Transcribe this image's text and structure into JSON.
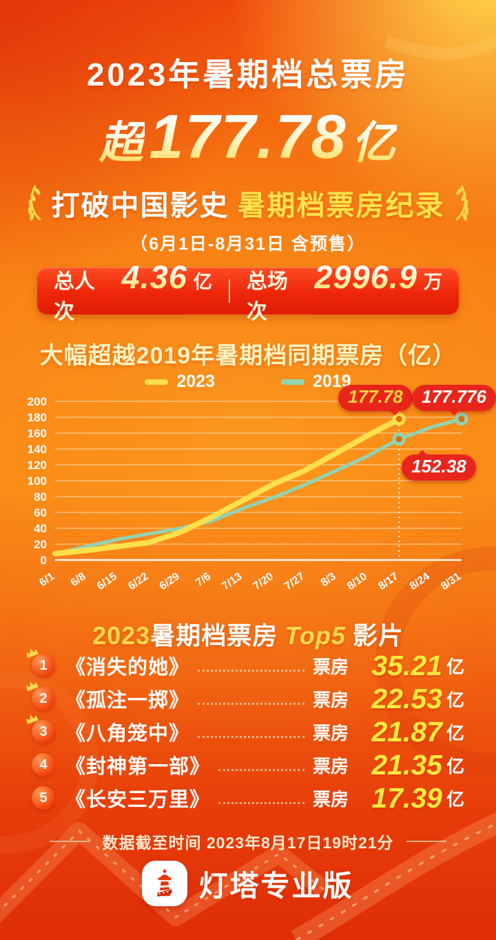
{
  "header": {
    "title": "2023年暑期档总票房",
    "headline_prefix": "超",
    "headline_value": "177.78",
    "headline_unit": "亿",
    "record_white": "打破中国影史",
    "record_yellow": "暑期档票房纪录",
    "date_range": "（6月1日-8月31日 含预售）"
  },
  "stats": {
    "attendance_label": "总人次",
    "attendance_value": "4.36",
    "attendance_unit": "亿",
    "sessions_label": "总场次",
    "sessions_value": "2996.9",
    "sessions_unit": "万"
  },
  "chart_data": {
    "type": "line",
    "title": "大幅超越2019年暑期档同期票房（亿）",
    "x": [
      "6/1",
      "6/8",
      "6/15",
      "6/22",
      "6/29",
      "7/6",
      "7/13",
      "7/20",
      "7/27",
      "8/3",
      "8/10",
      "8/17",
      "8/24",
      "8/31"
    ],
    "series": [
      {
        "name": "2023",
        "color": "#ffe04a",
        "values": [
          8,
          12,
          17,
          22,
          35,
          54,
          75,
          96,
          113,
          135,
          157,
          177.78,
          null,
          null
        ]
      },
      {
        "name": "2019",
        "color": "#8fd4b4",
        "values": [
          8,
          17,
          26,
          33,
          40,
          49,
          65,
          79,
          95,
          113,
          131,
          152.38,
          167,
          177.776
        ]
      }
    ],
    "ylim": [
      0,
      200
    ],
    "yticks": [
      0,
      20,
      40,
      60,
      80,
      100,
      120,
      140,
      160,
      180,
      200
    ],
    "grid": true,
    "legend_position": "top",
    "dotted_line_x": "8/17",
    "annotations": [
      {
        "series": "2023",
        "x": "8/17",
        "value": 177.78,
        "label": "177.78"
      },
      {
        "series": "2019",
        "x": "8/17",
        "value": 152.38,
        "label": "152.38"
      },
      {
        "series": "2019",
        "x": "8/31",
        "value": 177.776,
        "label": "177.776"
      }
    ],
    "note": "values estimated from gridlines; labeled points are exact"
  },
  "top5": {
    "title_parts": {
      "year": "2023",
      "mid": "暑期档票房",
      "top": "Top5",
      "suffix": "影片"
    },
    "box_office_label": "票房",
    "unit": "亿",
    "items": [
      {
        "rank": "1",
        "title": "《消失的她》",
        "value": "35.21"
      },
      {
        "rank": "2",
        "title": "《孤注一掷》",
        "value": "22.53"
      },
      {
        "rank": "3",
        "title": "《八角笼中》",
        "value": "21.87"
      },
      {
        "rank": "4",
        "title": "《封神第一部》",
        "value": "21.35"
      },
      {
        "rank": "5",
        "title": "《长安三万里》",
        "value": "17.39"
      }
    ]
  },
  "footer": {
    "data_cutoff": "数据截至时间 2023年8月17日19时21分",
    "brand": "灯塔专业版"
  },
  "colors": {
    "accent_yellow": "#ffe04a",
    "line_2019": "#8fd4b4",
    "bubble_red": "#e8251b",
    "banner_red": "#ee2609",
    "value_yellow": "#ffe93e"
  }
}
